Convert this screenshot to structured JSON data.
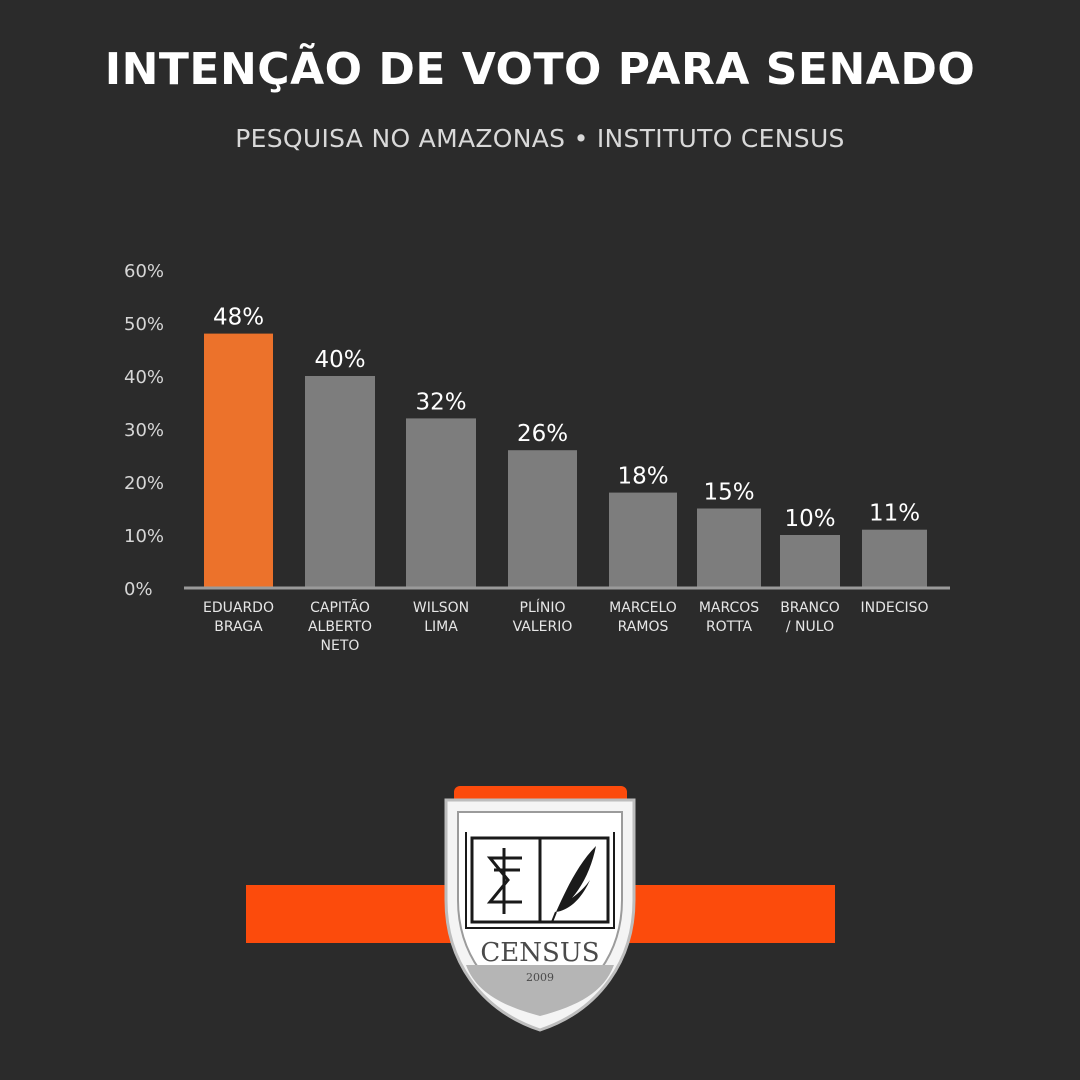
{
  "header": {
    "title": "INTENÇÃO DE VOTO PARA SENADO",
    "subtitle": "PESQUISA NO AMAZONAS • INSTITUTO CENSUS"
  },
  "chart_data": {
    "type": "bar",
    "categories": [
      [
        "EDUARDO",
        "BRAGA"
      ],
      [
        "CAPITÃO",
        "ALBERTO",
        "NETO"
      ],
      [
        "WILSON",
        "LIMA"
      ],
      [
        "PLÍNIO",
        "VALERIO"
      ],
      [
        "MARCELO",
        "RAMOS"
      ],
      [
        "MARCOS",
        "ROTTA"
      ],
      [
        "BRANCO",
        "/ NULO"
      ],
      [
        "INDECISO"
      ]
    ],
    "values": [
      48,
      40,
      32,
      26,
      18,
      15,
      10,
      11
    ],
    "value_labels": [
      "48%",
      "40%",
      "32%",
      "26%",
      "18%",
      "15%",
      "10%",
      "11%"
    ],
    "yticks": [
      "0%",
      "10%",
      "20%",
      "30%",
      "40%",
      "50%",
      "60%"
    ],
    "ylim": [
      0,
      60
    ],
    "colors": {
      "highlight": "#ec722b",
      "bar": "#7d7d7d",
      "axis": "#9a9a9a"
    },
    "highlight_index": 0
  },
  "logo": {
    "name": "CENSUS",
    "year": "2009",
    "accent": "#fc4b0c"
  }
}
